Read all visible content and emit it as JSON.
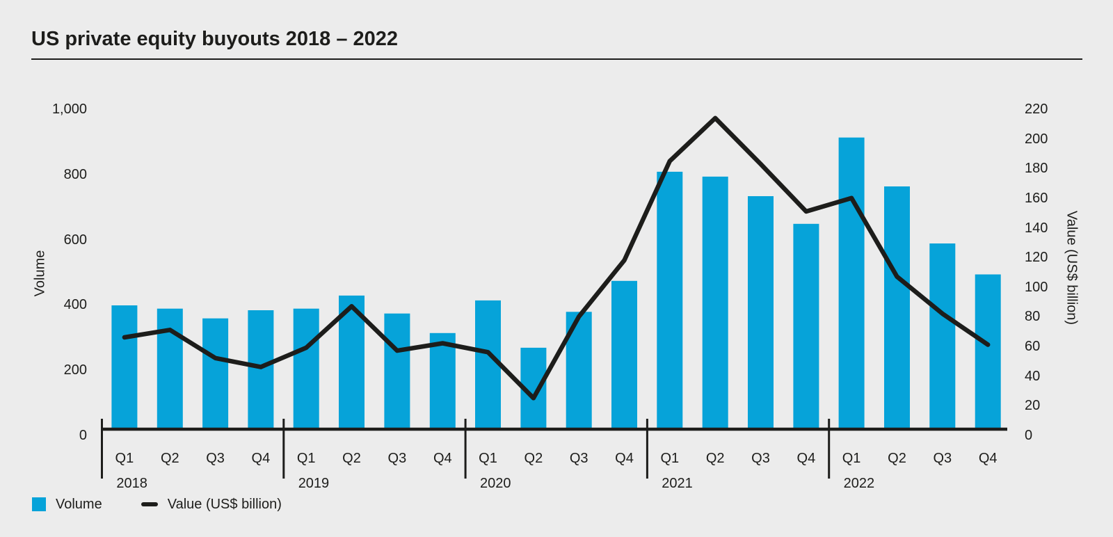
{
  "header": {
    "title": "US private equity buyouts 2018 – 2022"
  },
  "legend": {
    "volume_label": "Volume",
    "value_label": "Value (US$ billion)"
  },
  "colors": {
    "background": "#ECECEC",
    "bar": "#06A3D9",
    "line": "#1D1D1B",
    "text": "#1D1D1B"
  },
  "chart_data": {
    "type": "combo",
    "title": "US private equity buyouts 2018 – 2022",
    "grid": false,
    "legend_position": "bottom-left",
    "year_groups": [
      {
        "year": "2018",
        "quarters": [
          "Q1",
          "Q2",
          "Q3",
          "Q4"
        ]
      },
      {
        "year": "2019",
        "quarters": [
          "Q1",
          "Q2",
          "Q3",
          "Q4"
        ]
      },
      {
        "year": "2020",
        "quarters": [
          "Q1",
          "Q2",
          "Q3",
          "Q4"
        ]
      },
      {
        "year": "2021",
        "quarters": [
          "Q1",
          "Q2",
          "Q3",
          "Q4"
        ]
      },
      {
        "year": "2022",
        "quarters": [
          "Q1",
          "Q2",
          "Q3",
          "Q4"
        ]
      }
    ],
    "series": [
      {
        "name": "Volume",
        "type": "bar",
        "axis": "left",
        "color": "#06A3D9",
        "values": [
          380,
          370,
          340,
          365,
          370,
          410,
          355,
          295,
          395,
          250,
          360,
          455,
          790,
          775,
          715,
          630,
          895,
          745,
          570,
          475
        ]
      },
      {
        "name": "Value (US$ billion)",
        "type": "line",
        "axis": "right",
        "color": "#1D1D1B",
        "values": [
          62,
          67,
          48,
          42,
          55,
          83,
          53,
          58,
          52,
          21,
          76,
          114,
          181,
          210,
          179,
          147,
          156,
          103,
          78,
          57
        ]
      }
    ],
    "left_axis": {
      "label": "Volume",
      "min": 0,
      "max": 1000,
      "tick_step": 200,
      "tick_labels": [
        "0",
        "200",
        "400",
        "600",
        "800",
        "1,000"
      ]
    },
    "right_axis": {
      "label": "Value (US$ billion)",
      "min": 0,
      "max": 220,
      "tick_step": 20,
      "tick_labels": [
        "0",
        "20",
        "40",
        "60",
        "80",
        "100",
        "120",
        "140",
        "160",
        "180",
        "200",
        "220"
      ]
    }
  }
}
